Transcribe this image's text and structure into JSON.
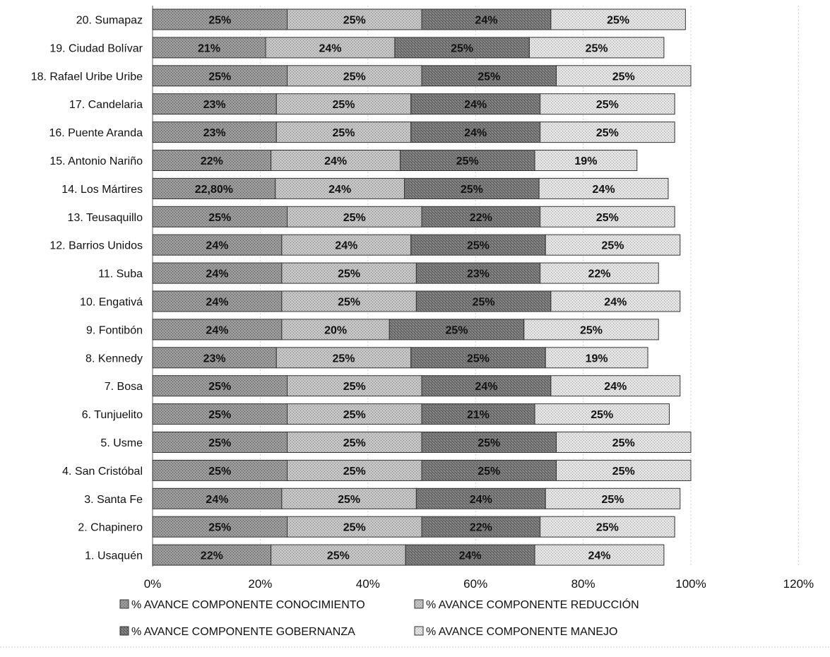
{
  "chart_data": {
    "type": "bar",
    "orientation": "horizontal",
    "stacked": true,
    "categories": [
      "20. Sumapaz",
      "19. Ciudad Bolívar",
      "18. Rafael Uribe Uribe",
      "17. Candelaria",
      "16. Puente Aranda",
      "15. Antonio Nariño",
      "14. Los Mártires",
      "13. Teusaquillo",
      "12. Barrios Unidos",
      "11. Suba",
      "10. Engativá",
      "9. Fontibón",
      "8. Kennedy",
      "7. Bosa",
      "6. Tunjuelito",
      "5. Usme",
      "4. San Cristóbal",
      "3. Santa Fe",
      "2. Chapinero",
      "1. Usaquén"
    ],
    "series": [
      {
        "name": "% AVANCE COMPONENTE CONOCIMIENTO",
        "values": [
          25,
          21,
          25,
          23,
          23,
          22,
          22.8,
          25,
          24,
          24,
          24,
          24,
          23,
          25,
          25,
          25,
          25,
          24,
          25,
          22
        ],
        "labels": [
          "25%",
          "21%",
          "25%",
          "23%",
          "23%",
          "22%",
          "22,80%",
          "25%",
          "24%",
          "24%",
          "24%",
          "24%",
          "23%",
          "25%",
          "25%",
          "25%",
          "25%",
          "24%",
          "25%",
          "22%"
        ],
        "color": "#8c8c8c"
      },
      {
        "name": "% AVANCE COMPONENTE REDUCCIÓN",
        "values": [
          25,
          24,
          25,
          25,
          25,
          24,
          24,
          25,
          24,
          25,
          25,
          20,
          25,
          25,
          25,
          25,
          25,
          25,
          25,
          25
        ],
        "labels": [
          "25%",
          "24%",
          "25%",
          "25%",
          "25%",
          "24%",
          "24%",
          "25%",
          "24%",
          "25%",
          "25%",
          "20%",
          "25%",
          "25%",
          "25%",
          "25%",
          "25%",
          "25%",
          "25%",
          "25%"
        ],
        "color": "#bdbdbd"
      },
      {
        "name": "% AVANCE COMPONENTE GOBERNANZA",
        "values": [
          24,
          25,
          25,
          24,
          24,
          25,
          25,
          22,
          25,
          23,
          25,
          25,
          25,
          24,
          21,
          25,
          25,
          24,
          22,
          24
        ],
        "labels": [
          "24%",
          "25%",
          "25%",
          "24%",
          "24%",
          "25%",
          "25%",
          "22%",
          "25%",
          "23%",
          "25%",
          "25%",
          "25%",
          "24%",
          "21%",
          "25%",
          "25%",
          "24%",
          "22%",
          "24%"
        ],
        "color": "#6e6e6e"
      },
      {
        "name": "% AVANCE COMPONENTE MANEJO",
        "values": [
          25,
          25,
          25,
          25,
          25,
          19,
          24,
          25,
          25,
          22,
          24,
          25,
          19,
          24,
          25,
          25,
          25,
          25,
          25,
          24
        ],
        "labels": [
          "25%",
          "25%",
          "25%",
          "25%",
          "25%",
          "19%",
          "24%",
          "25%",
          "25%",
          "22%",
          "24%",
          "25%",
          "19%",
          "24%",
          "25%",
          "25%",
          "25%",
          "25%",
          "25%",
          "24%"
        ],
        "color": "#d9d9d9"
      }
    ],
    "xlim": [
      0,
      120
    ],
    "x_ticks": [
      0,
      20,
      40,
      60,
      80,
      100,
      120
    ],
    "x_tick_labels": [
      "0%",
      "20%",
      "40%",
      "60%",
      "80%",
      "100%",
      "120%"
    ],
    "grid": true,
    "legend_position": "bottom",
    "legend": [
      "% AVANCE COMPONENTE CONOCIMIENTO",
      "% AVANCE COMPONENTE REDUCCIÓN",
      "% AVANCE COMPONENTE GOBERNANZA",
      "% AVANCE COMPONENTE MANEJO"
    ]
  }
}
